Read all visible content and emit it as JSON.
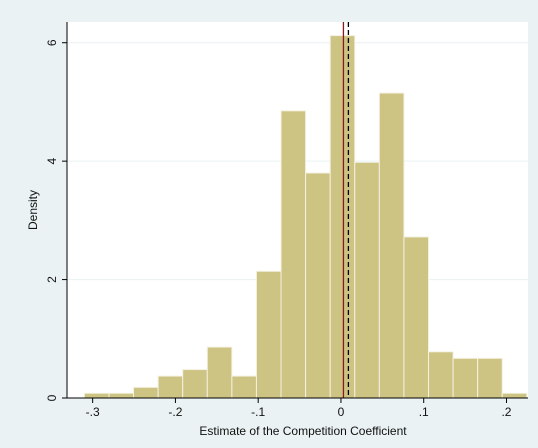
{
  "chart_data": {
    "type": "histogram",
    "x_label": "Estimate of the Competition Coefficient",
    "y_label": "Density",
    "bins": [
      -0.31,
      -0.2803,
      -0.2506,
      -0.2209,
      -0.1912,
      -0.1615,
      -0.1318,
      -0.1021,
      -0.0724,
      -0.0427,
      -0.013,
      0.0167,
      0.0464,
      0.0761,
      0.1058,
      0.1355,
      0.1652,
      0.1949,
      0.2246
    ],
    "values": [
      0.08,
      0.08,
      0.18,
      0.37,
      0.48,
      0.86,
      0.37,
      2.14,
      4.85,
      3.8,
      6.12,
      3.98,
      5.15,
      2.72,
      0.78,
      0.67,
      0.67,
      0.08
    ],
    "color": "#cdc383",
    "xlim": [
      -0.331,
      0.226
    ],
    "ylim": [
      0,
      6.35
    ],
    "xticks": [
      {
        "value": -0.3,
        "label": "-.3"
      },
      {
        "value": -0.2,
        "label": "-.2"
      },
      {
        "value": -0.1,
        "label": "-.1"
      },
      0,
      {
        "value": 0.1,
        "label": ".1"
      },
      {
        "value": 0.2,
        "label": ".2"
      }
    ],
    "yticks": [
      0,
      2,
      4,
      6
    ],
    "grid": true,
    "vlines": [
      {
        "value": 0.003,
        "color": "#8b1a1a",
        "dash": false
      },
      {
        "value": 0.009,
        "color": "#000000",
        "dash": true
      }
    ]
  }
}
